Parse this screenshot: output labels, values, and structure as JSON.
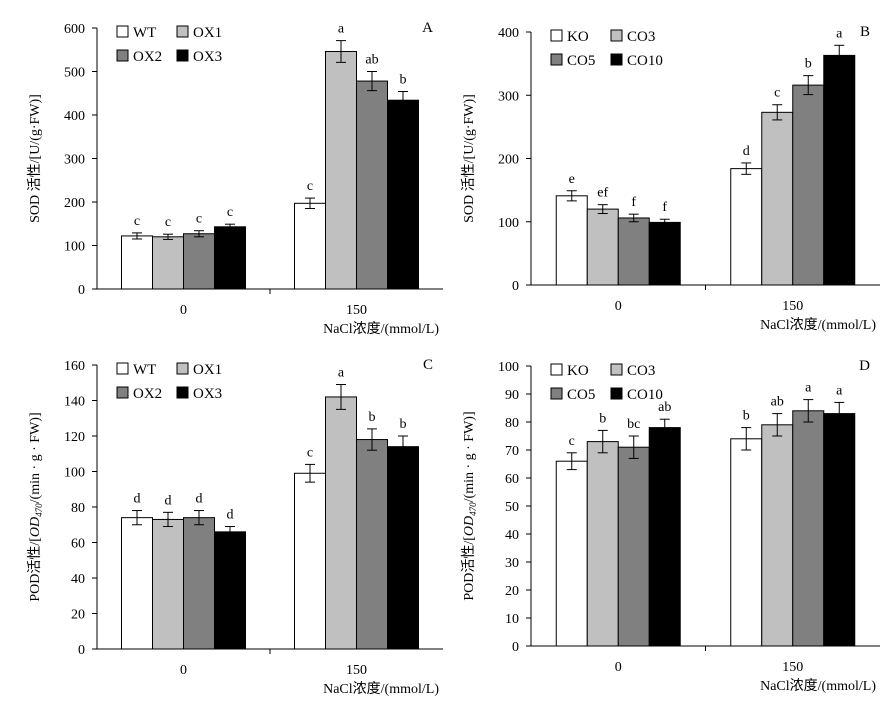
{
  "chart_data": [
    {
      "type": "bar",
      "panel_letter": "A",
      "ylabel": "SOD 活性/[U/(g·FW)]",
      "xlabel": "NaCl浓度/(mmol/L)",
      "categories": [
        "0",
        "150"
      ],
      "ylim": [
        0,
        600
      ],
      "yticks": [
        "0",
        "100",
        "200",
        "300",
        "400",
        "500",
        "600"
      ],
      "legend_position": "top-left",
      "series": [
        {
          "name": "WT",
          "color": "#ffffff",
          "values": [
            122,
            197
          ],
          "errors": [
            7,
            12
          ],
          "sig": [
            "c",
            "c"
          ]
        },
        {
          "name": "OX1",
          "color": "#c0c0c0",
          "values": [
            120,
            546
          ],
          "errors": [
            6,
            25
          ],
          "sig": [
            "c",
            "a"
          ]
        },
        {
          "name": "OX2",
          "color": "#808080",
          "values": [
            127,
            478
          ],
          "errors": [
            7,
            22
          ],
          "sig": [
            "c",
            "ab"
          ]
        },
        {
          "name": "OX3",
          "color": "#000000",
          "values": [
            143,
            434
          ],
          "errors": [
            6,
            20
          ],
          "sig": [
            "c",
            "b"
          ]
        }
      ]
    },
    {
      "type": "bar",
      "panel_letter": "B",
      "ylabel": "SOD 活性/[U/(g·FW)]",
      "xlabel": "NaCl浓度/(mmol/L)",
      "categories": [
        "0",
        "150"
      ],
      "ylim": [
        0,
        400
      ],
      "yticks": [
        "0",
        "100",
        "200",
        "300",
        "400"
      ],
      "legend_position": "top-left",
      "series": [
        {
          "name": "KO",
          "color": "#ffffff",
          "values": [
            141,
            184
          ],
          "errors": [
            8,
            9
          ],
          "sig": [
            "e",
            "d"
          ]
        },
        {
          "name": "CO3",
          "color": "#c0c0c0",
          "values": [
            120,
            273
          ],
          "errors": [
            7,
            12
          ],
          "sig": [
            "ef",
            "c"
          ]
        },
        {
          "name": "CO5",
          "color": "#808080",
          "values": [
            106,
            316
          ],
          "errors": [
            6,
            15
          ],
          "sig": [
            "f",
            "b"
          ]
        },
        {
          "name": "CO10",
          "color": "#000000",
          "values": [
            99,
            363
          ],
          "errors": [
            5,
            16
          ],
          "sig": [
            "f",
            "a"
          ]
        }
      ]
    },
    {
      "type": "bar",
      "panel_letter": "C",
      "ylabel": "POD活性/[OD470/(min · g · FW)]",
      "xlabel": "NaCl浓度/(mmol/L)",
      "categories": [
        "0",
        "150"
      ],
      "ylim": [
        0,
        160
      ],
      "yticks": [
        "0",
        "20",
        "40",
        "60",
        "80",
        "100",
        "120",
        "140",
        "160"
      ],
      "legend_position": "top-left",
      "series": [
        {
          "name": "WT",
          "color": "#ffffff",
          "values": [
            74,
            99
          ],
          "errors": [
            4,
            5
          ],
          "sig": [
            "d",
            "c"
          ]
        },
        {
          "name": "OX1",
          "color": "#c0c0c0",
          "values": [
            73,
            142
          ],
          "errors": [
            4,
            7
          ],
          "sig": [
            "d",
            "a"
          ]
        },
        {
          "name": "OX2",
          "color": "#808080",
          "values": [
            74,
            118
          ],
          "errors": [
            4,
            6
          ],
          "sig": [
            "d",
            "b"
          ]
        },
        {
          "name": "OX3",
          "color": "#000000",
          "values": [
            66,
            114
          ],
          "errors": [
            3,
            6
          ],
          "sig": [
            "d",
            "b"
          ]
        }
      ]
    },
    {
      "type": "bar",
      "panel_letter": "D",
      "ylabel": "POD活性/[OD470/(min · g · FW)]",
      "xlabel": "NaCl浓度/(mmol/L)",
      "categories": [
        "0",
        "150"
      ],
      "ylim": [
        0,
        100
      ],
      "yticks": [
        "0",
        "10",
        "20",
        "30",
        "40",
        "50",
        "60",
        "70",
        "80",
        "90",
        "100"
      ],
      "legend_position": "top-left",
      "series": [
        {
          "name": "KO",
          "color": "#ffffff",
          "values": [
            66,
            74
          ],
          "errors": [
            3,
            4
          ],
          "sig": [
            "c",
            "b"
          ]
        },
        {
          "name": "CO3",
          "color": "#c0c0c0",
          "values": [
            73,
            79
          ],
          "errors": [
            4,
            4
          ],
          "sig": [
            "b",
            "ab"
          ]
        },
        {
          "name": "CO5",
          "color": "#808080",
          "values": [
            71,
            84
          ],
          "errors": [
            4,
            4
          ],
          "sig": [
            "bc",
            "a"
          ]
        },
        {
          "name": "CO10",
          "color": "#000000",
          "values": [
            78,
            83
          ],
          "errors": [
            3,
            4
          ],
          "sig": [
            "ab",
            "a"
          ]
        }
      ]
    }
  ]
}
